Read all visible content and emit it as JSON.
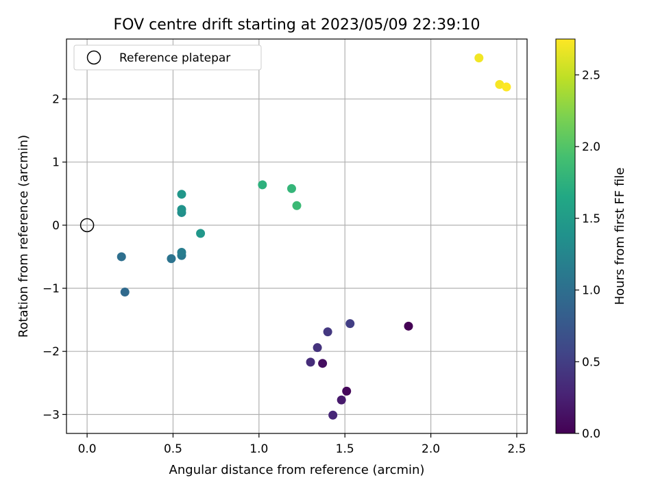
{
  "chart_data": {
    "type": "scatter",
    "title": "FOV centre drift starting at 2023/05/09 22:39:10",
    "xlabel": "Angular distance from reference (arcmin)",
    "ylabel": "Rotation from reference (arcmin)",
    "xlim": [
      -0.12,
      2.56
    ],
    "ylim": [
      -3.3,
      2.95
    ],
    "xticks": [
      0.0,
      0.5,
      1.0,
      1.5,
      2.0,
      2.5
    ],
    "xtick_labels": [
      "0.0",
      "0.5",
      "1.0",
      "1.5",
      "2.0",
      "2.5"
    ],
    "yticks": [
      -3,
      -2,
      -1,
      0,
      1,
      2
    ],
    "ytick_labels": [
      "−3",
      "−2",
      "−1",
      "0",
      "1",
      "2"
    ],
    "grid": true,
    "legend": {
      "placement": "upper-left",
      "entries": [
        {
          "label": "Reference platepar",
          "marker": "open-circle"
        }
      ]
    },
    "reference_point": {
      "x": 0.0,
      "y": 0.0
    },
    "colorbar": {
      "label": "Hours from first FF file",
      "colormap": "viridis",
      "range": [
        0.0,
        2.75
      ],
      "ticks": [
        0.0,
        0.5,
        1.0,
        1.5,
        2.0,
        2.5
      ],
      "tick_labels": [
        "0.0",
        "0.5",
        "1.0",
        "1.5",
        "2.0",
        "2.5"
      ]
    },
    "points": [
      {
        "x": 1.87,
        "y": -1.6,
        "hours": 0.0
      },
      {
        "x": 1.51,
        "y": -2.63,
        "hours": 0.05
      },
      {
        "x": 1.37,
        "y": -2.19,
        "hours": 0.1
      },
      {
        "x": 1.48,
        "y": -2.77,
        "hours": 0.2
      },
      {
        "x": 1.43,
        "y": -3.01,
        "hours": 0.3
      },
      {
        "x": 1.3,
        "y": -2.17,
        "hours": 0.35
      },
      {
        "x": 1.34,
        "y": -1.94,
        "hours": 0.4
      },
      {
        "x": 1.4,
        "y": -1.69,
        "hours": 0.45
      },
      {
        "x": 1.53,
        "y": -1.56,
        "hours": 0.5
      },
      {
        "x": 0.22,
        "y": -1.06,
        "hours": 0.95
      },
      {
        "x": 0.2,
        "y": -0.5,
        "hours": 1.0
      },
      {
        "x": 0.49,
        "y": -0.53,
        "hours": 1.05
      },
      {
        "x": 0.55,
        "y": -0.48,
        "hours": 1.1
      },
      {
        "x": 0.55,
        "y": -0.43,
        "hours": 1.15
      },
      {
        "x": 0.55,
        "y": 0.2,
        "hours": 1.35
      },
      {
        "x": 0.55,
        "y": 0.25,
        "hours": 1.4
      },
      {
        "x": 0.66,
        "y": -0.13,
        "hours": 1.45
      },
      {
        "x": 0.55,
        "y": 0.49,
        "hours": 1.45
      },
      {
        "x": 1.02,
        "y": 0.64,
        "hours": 1.75
      },
      {
        "x": 1.19,
        "y": 0.58,
        "hours": 1.8
      },
      {
        "x": 1.22,
        "y": 0.31,
        "hours": 1.85
      },
      {
        "x": 2.28,
        "y": 2.65,
        "hours": 2.7
      },
      {
        "x": 2.4,
        "y": 2.23,
        "hours": 2.72
      },
      {
        "x": 2.44,
        "y": 2.19,
        "hours": 2.75
      }
    ]
  }
}
